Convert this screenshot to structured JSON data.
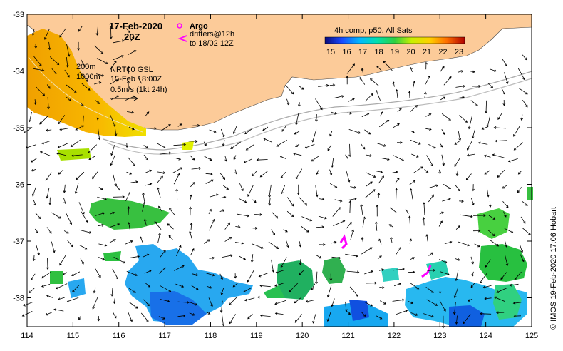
{
  "map": {
    "date": "17-Feb-2020",
    "time": "20Z",
    "legend_argo": "Argo",
    "legend_drifters_1": "drifters@12h",
    "legend_drifters_2": "to 18/02 12Z",
    "contour_200": "200m",
    "contour_1000": "1000m",
    "gsl_1": "NRT00 GSL",
    "gsl_2": "15-Feb 18:00Z",
    "scale_vec": "0.5m/s (1kt 24h)",
    "colorbar_title": "4h comp, p50, All Sats",
    "colorbar_ticks": [
      "15",
      "16",
      "17",
      "18",
      "19",
      "20",
      "21",
      "22",
      "23"
    ],
    "credit": "© IMOS 19-Feb-2020 17:06 Hobart",
    "x_ticks": [
      "114",
      "115",
      "116",
      "117",
      "118",
      "119",
      "120",
      "121",
      "122",
      "123",
      "124",
      "125"
    ],
    "y_ticks": [
      "-33",
      "-34",
      "-35",
      "-36",
      "-37",
      "-38"
    ],
    "colors": {
      "land": "#fccb99",
      "argo": "#ff00ff",
      "arrow": "#000000"
    }
  }
}
